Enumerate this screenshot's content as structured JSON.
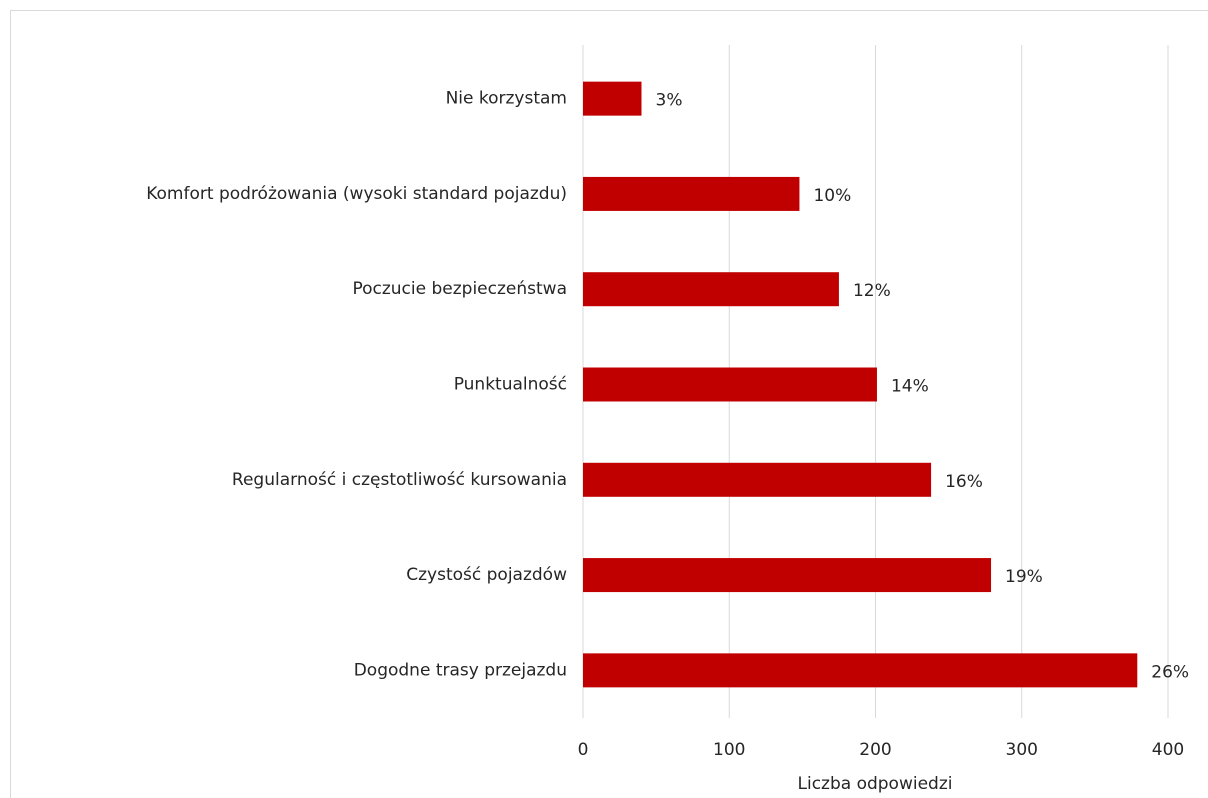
{
  "chart_data": {
    "type": "barh",
    "categories": [
      "Nie korzystam",
      "Komfort podróżowania (wysoki standard pojazdu)",
      "Poczucie bezpieczeństwa",
      "Punktualność",
      "Regularność i częstotliwość kursowania",
      "Czystość pojazdów",
      "Dogodne trasy przejazdu"
    ],
    "values": [
      40,
      148,
      175,
      201,
      238,
      279,
      379
    ],
    "value_labels": [
      "3%",
      "10%",
      "12%",
      "14%",
      "16%",
      "19%",
      "26%"
    ],
    "color": "#c00000",
    "xlabel": "Liczba odpowiedzi",
    "xlim": [
      0,
      400
    ],
    "xticks": [
      0,
      100,
      200,
      300,
      400
    ],
    "grid": true
  }
}
